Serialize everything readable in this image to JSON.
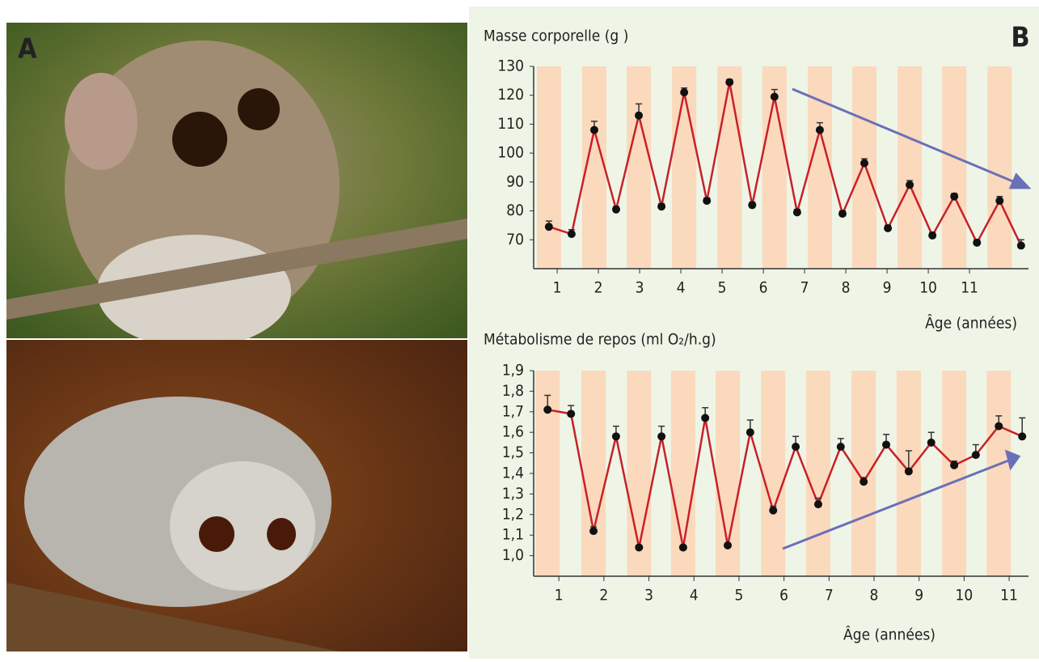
{
  "panel_labels": [
    "A",
    "B"
  ],
  "chart_data": [
    {
      "type": "line",
      "title": "Masse corporelle (g )",
      "x_label": "Âge (années)",
      "color": "#c8202a",
      "x": [
        0.8,
        1.35,
        1.9,
        2.43,
        2.98,
        3.53,
        4.08,
        4.63,
        5.18,
        5.73,
        6.27,
        6.82,
        7.37,
        7.92,
        8.45,
        9.02,
        9.55,
        10.1,
        10.63,
        11.18,
        11.73,
        12.25
      ],
      "values": [
        74.5,
        72,
        108,
        80.5,
        113,
        81.5,
        121,
        83.5,
        124.5,
        82,
        119.5,
        79.5,
        108,
        79,
        96.5,
        74,
        89,
        71.5,
        85,
        69,
        83.5,
        68
      ],
      "errors": [
        2,
        1.5,
        3,
        1,
        4,
        1,
        1.5,
        1,
        1,
        1,
        2.5,
        1,
        2.5,
        1,
        1.5,
        1,
        1.5,
        1,
        1,
        1,
        1.5,
        2
      ],
      "xlim": [
        0.43,
        12.43
      ],
      "xticks": [
        1,
        2,
        3,
        4,
        5,
        6,
        7,
        8,
        9,
        10,
        11
      ],
      "ylim": [
        60,
        130
      ],
      "yticks": [
        70,
        80,
        90,
        100,
        110,
        120,
        130
      ]
    },
    {
      "type": "line",
      "title": "Métabolisme de repos (ml O₂/h.g)",
      "x_label": "Âge (années)",
      "color": "#c8202a",
      "x": [
        0.75,
        1.27,
        1.77,
        2.27,
        2.78,
        3.28,
        3.76,
        4.25,
        4.75,
        5.25,
        5.76,
        6.26,
        6.76,
        7.26,
        7.77,
        8.27,
        8.77,
        9.27,
        9.78,
        10.26,
        10.77,
        11.29
      ],
      "values": [
        1.71,
        1.69,
        1.12,
        1.58,
        1.04,
        1.58,
        1.04,
        1.67,
        1.05,
        1.6,
        1.22,
        1.53,
        1.25,
        1.53,
        1.36,
        1.54,
        1.41,
        1.55,
        1.44,
        1.49,
        1.63,
        1.58
      ],
      "errors": [
        0.07,
        0.04,
        0.02,
        0.05,
        0.01,
        0.05,
        0.01,
        0.05,
        0.01,
        0.06,
        0.02,
        0.05,
        0.03,
        0.04,
        0.02,
        0.05,
        0.1,
        0.05,
        0.02,
        0.05,
        0.05,
        0.09
      ],
      "xlim": [
        0.44,
        11.43
      ],
      "xticks": [
        1,
        2,
        3,
        4,
        5,
        6,
        7,
        8,
        9,
        10,
        11
      ],
      "ylim": [
        0.9,
        1.9
      ],
      "yticks": [
        {
          "value": 1.0,
          "label": "1,0"
        },
        {
          "value": 1.1,
          "label": "1,1"
        },
        {
          "value": 1.2,
          "label": "1,2"
        },
        {
          "value": 1.3,
          "label": "1,3"
        },
        {
          "value": 1.4,
          "label": "1,4"
        },
        {
          "value": 1.5,
          "label": "1,5"
        },
        {
          "value": 1.6,
          "label": "1,6"
        },
        {
          "value": 1.7,
          "label": "1,7"
        },
        {
          "value": 1.8,
          "label": "1,8"
        },
        {
          "value": 1.9,
          "label": "1,9"
        }
      ]
    }
  ]
}
